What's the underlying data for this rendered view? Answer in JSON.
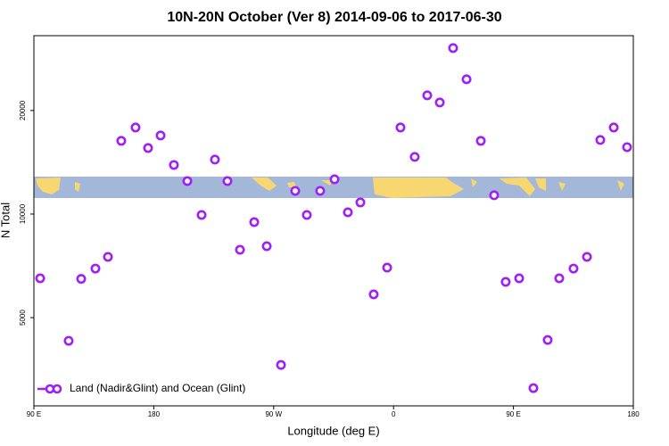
{
  "chart_data": {
    "type": "scatter",
    "title": "10N-20N October (Ver 8)   2014-09-06 to 2017-06-30",
    "xlabel": "Longitude (deg E)",
    "ylabel": "N Total",
    "xlim": [
      90,
      540
    ],
    "ylim": [
      2770,
      33000
    ],
    "log_y": true,
    "xticks": [
      {
        "value": 90,
        "label": "90 E"
      },
      180,
      {
        "value": 270,
        "label": "90 W"
      },
      {
        "value": 360,
        "label": "0"
      },
      {
        "value": 450,
        "label": "90 E"
      },
      {
        "value": 540,
        "label": "180"
      }
    ],
    "yticks": [
      5000,
      10000,
      20000
    ],
    "legend": "bottom-left",
    "series": [
      {
        "name": "Land (Nadir&Glint) and Ocean (Glint)",
        "color": "#a020f0",
        "x": [
          94.7,
          116.1,
          125.5,
          136.2,
          145.6,
          155.6,
          166.3,
          175.7,
          185.1,
          195.1,
          205.2,
          215.9,
          225.9,
          235.3,
          244.7,
          255.4,
          264.8,
          275.5,
          286.2,
          294.9,
          304.9,
          315.7,
          325.7,
          335.1,
          345.1,
          355.2,
          365.2,
          375.9,
          385.3,
          394.7,
          404.7,
          414.8,
          425.5,
          435.5,
          444.2,
          454.3,
          465,
          475.7,
          484.4,
          495.1,
          505.2,
          515.2,
          525.3,
          535.3
        ],
        "values": [
          6505,
          4281,
          6480,
          6944,
          7509,
          16320,
          17850,
          15560,
          16920,
          13890,
          12470,
          9940,
          14400,
          12470,
          7874,
          9476,
          8066,
          3642,
          11680,
          9940,
          11680,
          12620,
          10120,
          10810,
          5842,
          6987,
          17850,
          14660,
          22140,
          21100,
          30380,
          24650,
          16320,
          11340,
          6352,
          6505,
          3119,
          4306,
          6505,
          6944,
          7509,
          16420,
          17850,
          15650
        ]
      }
    ]
  }
}
